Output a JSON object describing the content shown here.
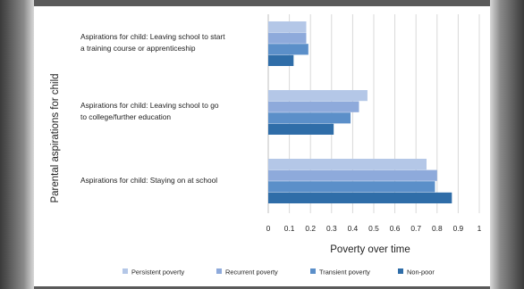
{
  "chart_data": {
    "type": "bar",
    "orientation": "horizontal",
    "xlabel": "Poverty over time",
    "ylabel": "Parental aspirations for child",
    "xlim": [
      0,
      1
    ],
    "xticks": [
      "0",
      "0.1",
      "0.2",
      "0.3",
      "0.4",
      "0.5",
      "0.6",
      "0.7",
      "0.8",
      "0.9",
      "1"
    ],
    "grid": true,
    "legend_position": "bottom",
    "categories": [
      [
        "Aspirations for child: Leaving school to start",
        "a training course or apprenticeship"
      ],
      [
        "Aspirations for child: Leaving school to go",
        "to college/further education"
      ],
      [
        "Aspirations for child: Staying on at school"
      ]
    ],
    "series": [
      {
        "name": "Persistent poverty",
        "color": "#b4c7e7",
        "values": [
          0.18,
          0.47,
          0.75
        ]
      },
      {
        "name": "Recurrent poverty",
        "color": "#8eaadb",
        "values": [
          0.18,
          0.43,
          0.8
        ]
      },
      {
        "name": "Transient poverty",
        "color": "#5b8fc9",
        "values": [
          0.19,
          0.39,
          0.79
        ]
      },
      {
        "name": "Non-poor",
        "color": "#2f6da8",
        "values": [
          0.12,
          0.31,
          0.87
        ]
      }
    ]
  }
}
